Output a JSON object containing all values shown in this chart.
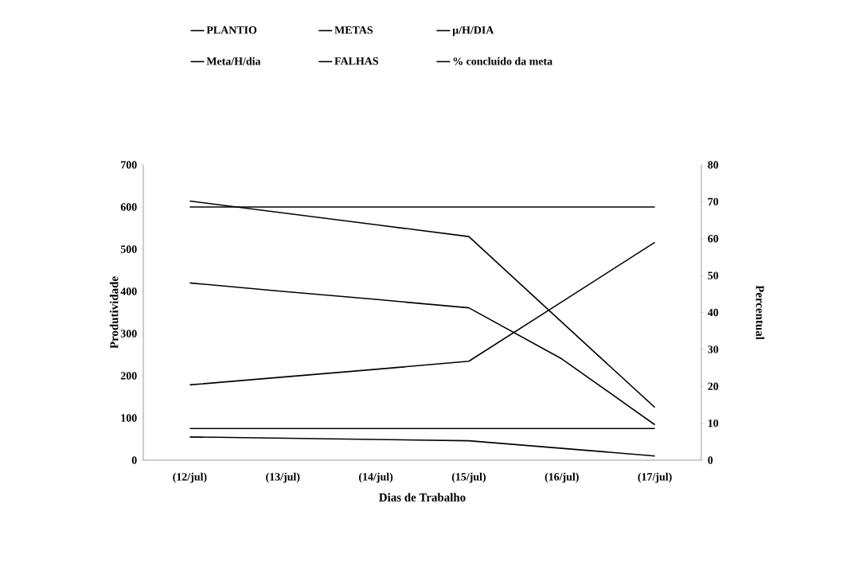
{
  "chart_data": {
    "type": "line",
    "categories": [
      "(12/jul)",
      "(13/jul)",
      "(14/jul)",
      "(15/jul)",
      "(16/jul)",
      "(17/jul)"
    ],
    "xlabel": "Dias de Trabalho",
    "ylabel": "Produtividade",
    "y2label": "Percentual",
    "ylim": [
      0,
      700
    ],
    "yticks": [
      0,
      100,
      200,
      300,
      400,
      500,
      600,
      700
    ],
    "y2lim": [
      0,
      80
    ],
    "y2ticks": [
      0,
      10,
      20,
      30,
      40,
      50,
      60,
      70,
      80
    ],
    "legend": "top",
    "marker": "none",
    "line_style": "solid",
    "grid": false,
    "series": [
      {
        "name": "PLANTIO",
        "color": "#000000",
        "values": [
          614,
          586,
          558,
          530,
          327,
          125
        ]
      },
      {
        "name": "METAS",
        "color": "#000000",
        "values": [
          600,
          600,
          600,
          600,
          600,
          600
        ]
      },
      {
        "name": "µ/H/DIA",
        "color": "#000000",
        "values": [
          420,
          400,
          381,
          361,
          240,
          84
        ]
      },
      {
        "name": "Meta/H/dia",
        "color": "#000000",
        "values": [
          75,
          75,
          75,
          75,
          75,
          75
        ]
      },
      {
        "name": "FALHAS",
        "color": "#000000",
        "values": [
          55,
          52,
          49,
          46,
          28,
          10
        ]
      },
      {
        "name": "% concluido da meta",
        "color": "#000000",
        "axis": "y2",
        "values": [
          20.4,
          22.5,
          24.6,
          26.8,
          42.9,
          59.0
        ]
      }
    ]
  }
}
